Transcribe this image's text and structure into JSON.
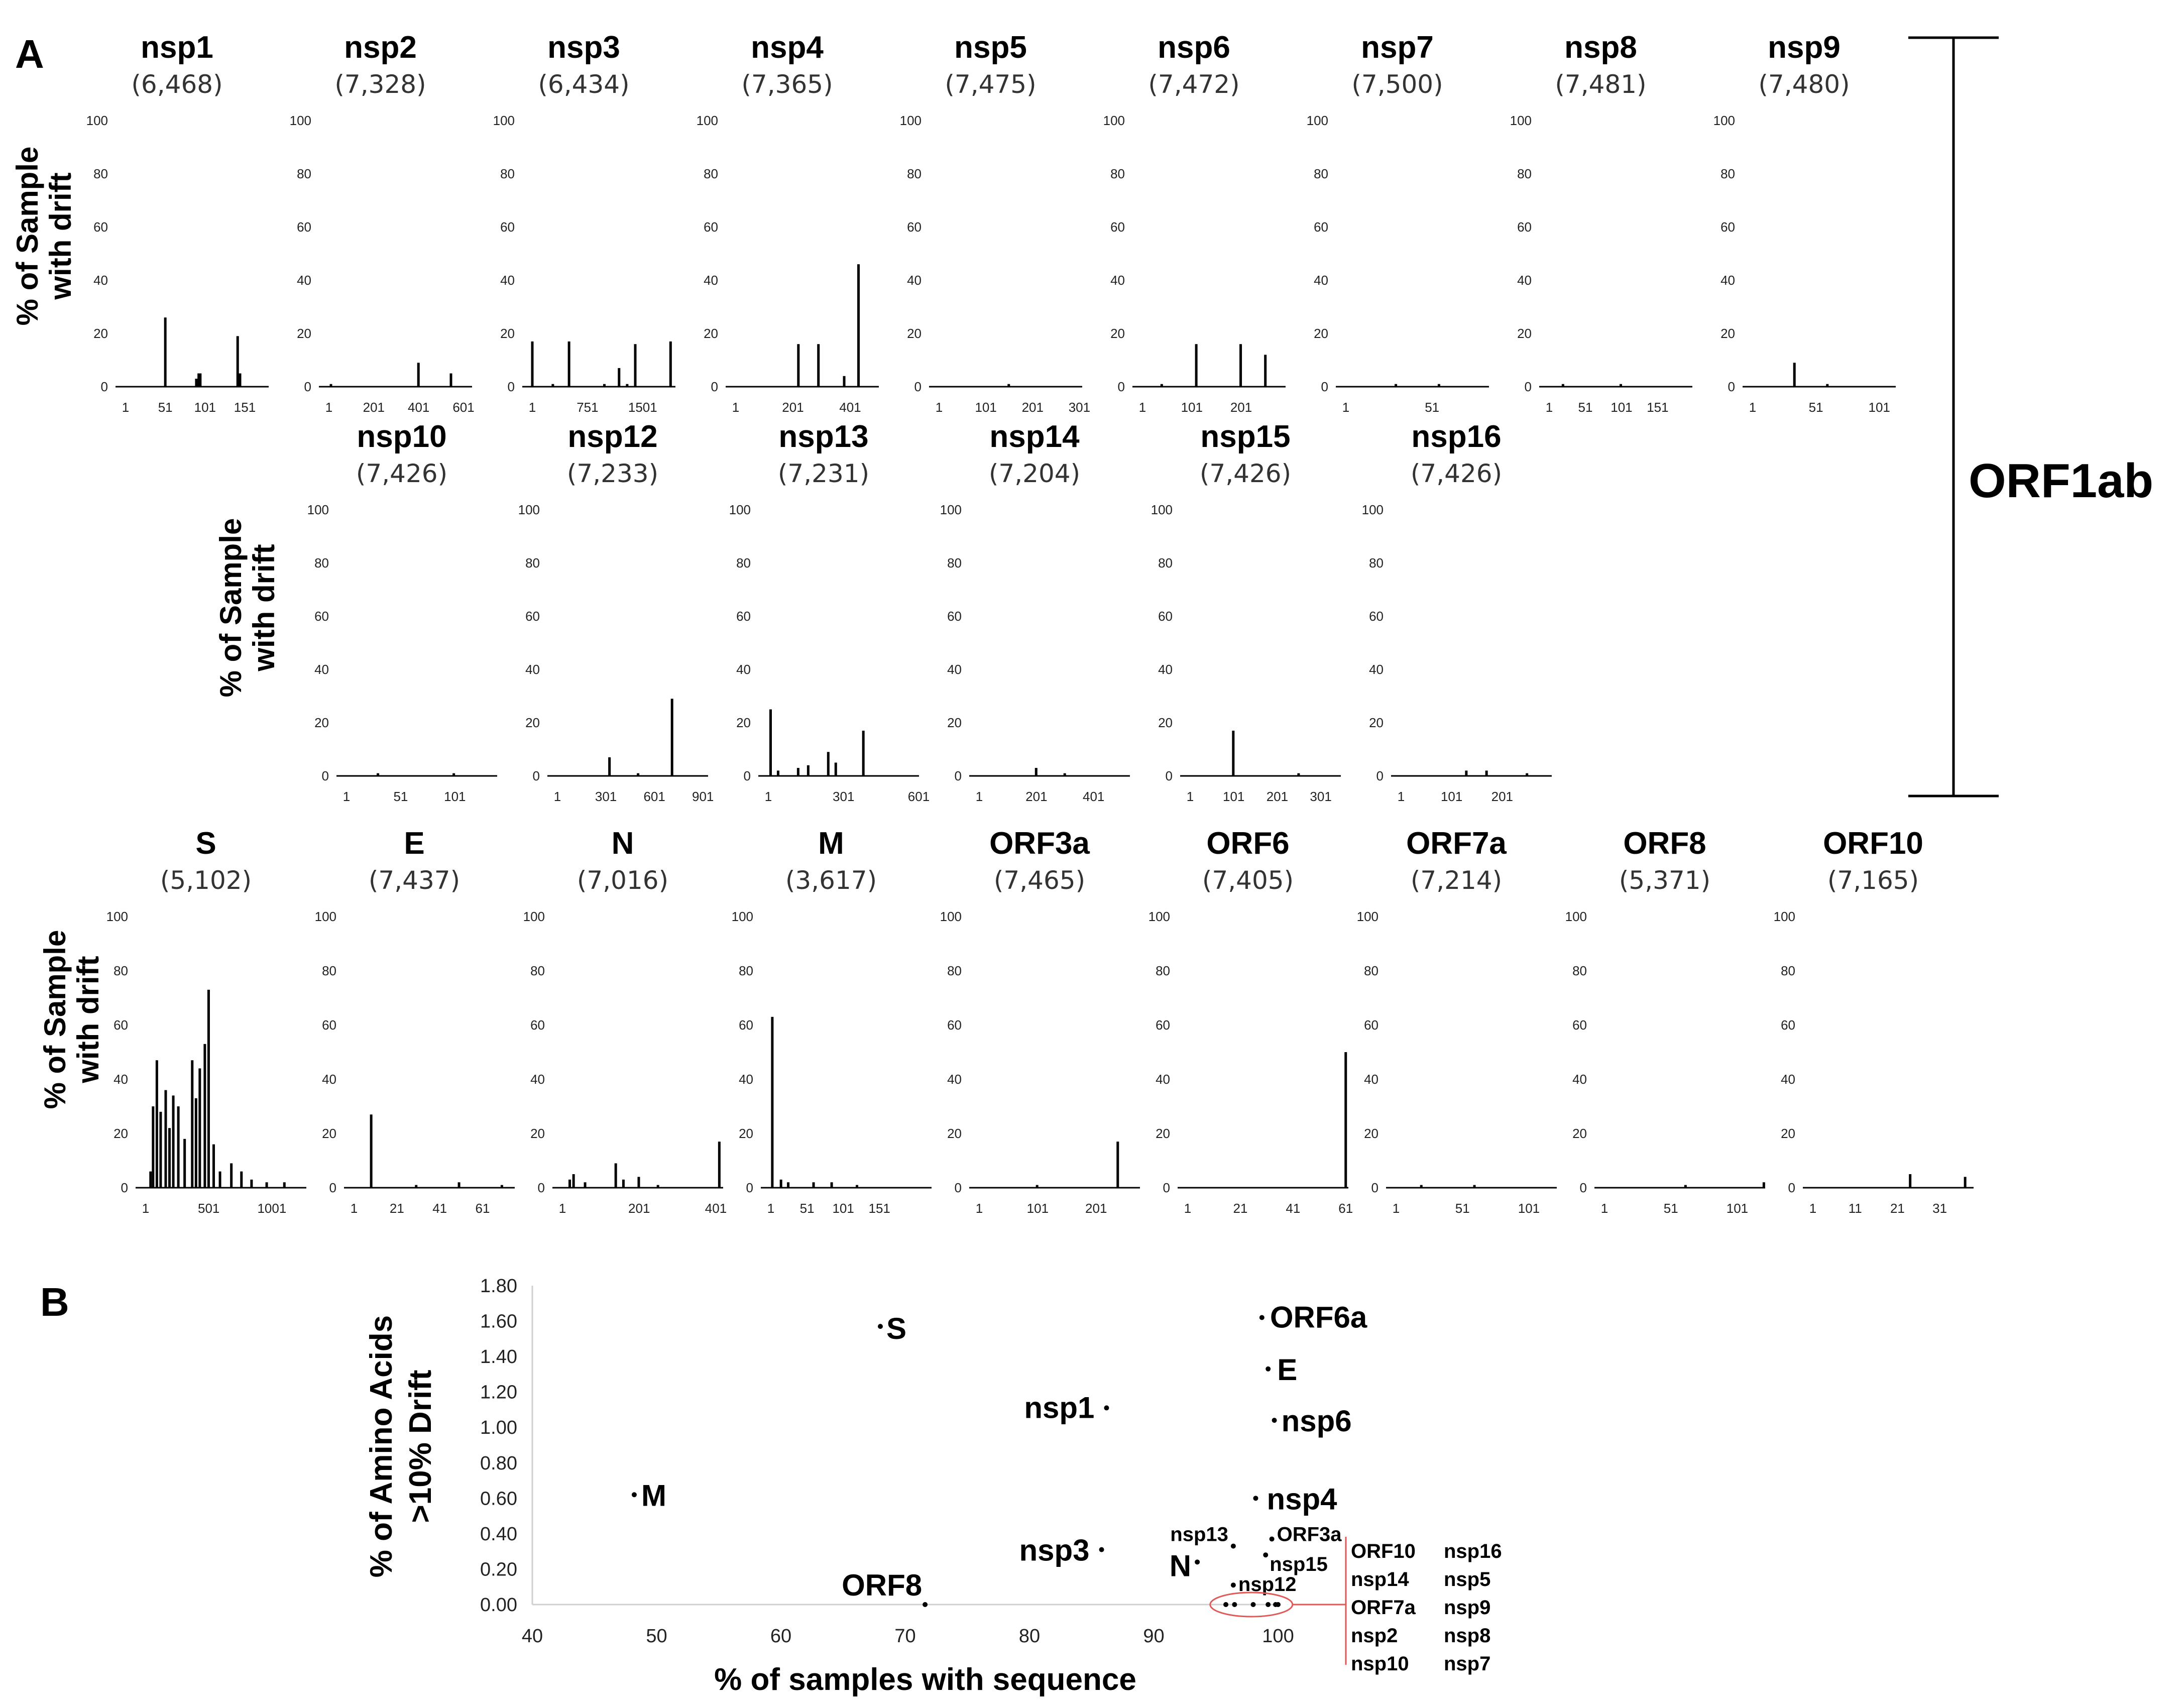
{
  "panel_a_label": "A",
  "panel_b_label": "B",
  "y_axis_label_line1": "% of Sample",
  "y_axis_label_line2": "with drift",
  "bracket_label": "ORF1ab",
  "chart_data": [
    {
      "type": "bar",
      "panel": "A",
      "xlabel": "",
      "ylabel": "% of Sample with drift",
      "ylim": [
        0,
        100
      ],
      "yticks": [
        0,
        20,
        40,
        60,
        80,
        100
      ],
      "genes": [
        {
          "name": "nsp1",
          "count": "(6,468)",
          "length": 180,
          "xticks": [
            "1",
            "51",
            "101",
            "151"
          ],
          "peaks": [
            [
              51,
              26
            ],
            [
              90,
              3
            ],
            [
              93,
              5
            ],
            [
              95,
              5
            ],
            [
              142,
              19
            ],
            [
              145,
              5
            ]
          ]
        },
        {
          "name": "nsp2",
          "count": "(7,328)",
          "length": 638,
          "xticks": [
            "1",
            "201",
            "401",
            "601"
          ],
          "peaks": [
            [
              10,
              1
            ],
            [
              400,
              9
            ],
            [
              545,
              5
            ]
          ]
        },
        {
          "name": "nsp3",
          "count": "(6,434)",
          "length": 1945,
          "xticks": [
            "1",
            "751",
            "1501"
          ],
          "peaks": [
            [
              1,
              17
            ],
            [
              280,
              1
            ],
            [
              500,
              17
            ],
            [
              980,
              1
            ],
            [
              1180,
              7
            ],
            [
              1290,
              1
            ],
            [
              1400,
              16
            ],
            [
              1880,
              17
            ]
          ]
        },
        {
          "name": "nsp4",
          "count": "(7,365)",
          "length": 500,
          "xticks": [
            "1",
            "201",
            "401"
          ],
          "peaks": [
            [
              220,
              16
            ],
            [
              290,
              16
            ],
            [
              380,
              4
            ],
            [
              430,
              46
            ]
          ]
        },
        {
          "name": "nsp5",
          "count": "(7,475)",
          "length": 306,
          "xticks": [
            "1",
            "101",
            "201",
            "301"
          ],
          "peaks": [
            [
              150,
              1
            ]
          ]
        },
        {
          "name": "nsp6",
          "count": "(7,472)",
          "length": 290,
          "xticks": [
            "1",
            "101",
            "201"
          ],
          "peaks": [
            [
              40,
              1
            ],
            [
              110,
              16
            ],
            [
              200,
              16
            ],
            [
              250,
              12
            ]
          ]
        },
        {
          "name": "nsp7",
          "count": "(7,500)",
          "length": 83,
          "xticks": [
            "1",
            "51"
          ],
          "peaks": [
            [
              30,
              1
            ],
            [
              55,
              1
            ]
          ]
        },
        {
          "name": "nsp8",
          "count": "(7,481)",
          "length": 198,
          "xticks": [
            "1",
            "51",
            "101",
            "151"
          ],
          "peaks": [
            [
              20,
              1
            ],
            [
              100,
              1
            ]
          ]
        },
        {
          "name": "nsp9",
          "count": "(7,480)",
          "length": 113,
          "xticks": [
            "1",
            "51",
            "101"
          ],
          "peaks": [
            [
              34,
              9
            ],
            [
              60,
              1
            ]
          ]
        },
        {
          "name": "nsp10",
          "count": "(7,426)",
          "length": 139,
          "xticks": [
            "1",
            "51",
            "101"
          ],
          "peaks": [
            [
              30,
              1
            ],
            [
              100,
              1
            ]
          ]
        },
        {
          "name": "nsp12",
          "count": "(7,233)",
          "length": 932,
          "xticks": [
            "1",
            "301",
            "601",
            "901"
          ],
          "peaks": [
            [
              323,
              7
            ],
            [
              500,
              1
            ],
            [
              710,
              29
            ]
          ]
        },
        {
          "name": "nsp13",
          "count": "(7,231)",
          "length": 601,
          "xticks": [
            "1",
            "301",
            "601"
          ],
          "peaks": [
            [
              10,
              25
            ],
            [
              40,
              2
            ],
            [
              120,
              3
            ],
            [
              160,
              4
            ],
            [
              240,
              9
            ],
            [
              270,
              5
            ],
            [
              380,
              17
            ]
          ]
        },
        {
          "name": "nsp14",
          "count": "(7,204)",
          "length": 527,
          "xticks": [
            "1",
            "201",
            "401"
          ],
          "peaks": [
            [
              200,
              3
            ],
            [
              300,
              1
            ]
          ]
        },
        {
          "name": "nsp15",
          "count": "(7,426)",
          "length": 346,
          "xticks": [
            "1",
            "101",
            "201",
            "301"
          ],
          "peaks": [
            [
              100,
              17
            ],
            [
              250,
              1
            ]
          ]
        },
        {
          "name": "nsp16",
          "count": "(7,426)",
          "length": 298,
          "xticks": [
            "1",
            "101",
            "201"
          ],
          "peaks": [
            [
              130,
              2
            ],
            [
              170,
              2
            ],
            [
              250,
              1
            ]
          ]
        },
        {
          "name": "S",
          "count": "(5,102)",
          "length": 1273,
          "xticks": [
            "1",
            "501",
            "1001"
          ],
          "peaks": [
            [
              40,
              6
            ],
            [
              60,
              30
            ],
            [
              90,
              47
            ],
            [
              120,
              28
            ],
            [
              160,
              36
            ],
            [
              190,
              22
            ],
            [
              220,
              34
            ],
            [
              260,
              30
            ],
            [
              310,
              18
            ],
            [
              370,
              47
            ],
            [
              400,
              33
            ],
            [
              430,
              44
            ],
            [
              470,
              53
            ],
            [
              500,
              73
            ],
            [
              540,
              16
            ],
            [
              590,
              6
            ],
            [
              680,
              9
            ],
            [
              760,
              6
            ],
            [
              840,
              3
            ],
            [
              960,
              2
            ],
            [
              1100,
              2
            ]
          ]
        },
        {
          "name": "E",
          "count": "(7,437)",
          "length": 75,
          "xticks": [
            "1",
            "21",
            "41",
            "61"
          ],
          "peaks": [
            [
              9,
              27
            ],
            [
              30,
              1
            ],
            [
              50,
              2
            ],
            [
              70,
              1
            ]
          ]
        },
        {
          "name": "N",
          "count": "(7,016)",
          "length": 419,
          "xticks": [
            "1",
            "201",
            "401"
          ],
          "peaks": [
            [
              20,
              3
            ],
            [
              30,
              5
            ],
            [
              60,
              2
            ],
            [
              140,
              9
            ],
            [
              160,
              3
            ],
            [
              200,
              4
            ],
            [
              250,
              1
            ],
            [
              410,
              17
            ]
          ]
        },
        {
          "name": "M",
          "count": "(3,617)",
          "length": 222,
          "xticks": [
            "1",
            "51",
            "101",
            "151"
          ],
          "peaks": [
            [
              3,
              63
            ],
            [
              15,
              3
            ],
            [
              25,
              2
            ],
            [
              60,
              2
            ],
            [
              85,
              2
            ],
            [
              120,
              1
            ]
          ]
        },
        {
          "name": "ORF3a",
          "count": "(7,465)",
          "length": 275,
          "xticks": [
            "1",
            "101",
            "201"
          ],
          "peaks": [
            [
              100,
              1
            ],
            [
              238,
              17
            ]
          ]
        },
        {
          "name": "ORF6",
          "count": "(7,405)",
          "length": 61,
          "xticks": [
            "1",
            "21",
            "41",
            "61"
          ],
          "peaks": [
            [
              61,
              50
            ]
          ]
        },
        {
          "name": "ORF7a",
          "count": "(7,214)",
          "length": 121,
          "xticks": [
            "1",
            "51",
            "101"
          ],
          "peaks": [
            [
              20,
              1
            ],
            [
              60,
              1
            ]
          ]
        },
        {
          "name": "ORF8",
          "count": "(5,371)",
          "length": 121,
          "xticks": [
            "1",
            "51",
            "101"
          ],
          "peaks": [
            [
              62,
              1
            ],
            [
              121,
              2
            ]
          ]
        },
        {
          "name": "ORF10",
          "count": "(7,165)",
          "length": 38,
          "xticks": [
            "1",
            "11",
            "21",
            "31"
          ],
          "peaks": [
            [
              24,
              5
            ],
            [
              37,
              4
            ]
          ]
        }
      ]
    },
    {
      "type": "scatter",
      "panel": "B",
      "xlabel": "% of samples with sequence",
      "ylabel_line1": "% of Amino Acids",
      "ylabel_line2": ">10% Drift",
      "xlim": [
        40,
        100
      ],
      "ylim": [
        0,
        1.8
      ],
      "xticks": [
        "40",
        "50",
        "60",
        "70",
        "80",
        "90",
        "100"
      ],
      "yticks": [
        "0.00",
        "0.20",
        "0.40",
        "0.60",
        "0.80",
        "1.00",
        "1.20",
        "1.40",
        "1.60",
        "1.80"
      ],
      "points": [
        {
          "label": "S",
          "x": 68.0,
          "y": 1.57
        },
        {
          "label": "ORF6a",
          "x": 98.7,
          "y": 1.62
        },
        {
          "label": "E",
          "x": 99.2,
          "y": 1.33
        },
        {
          "label": "nsp1",
          "x": 86.2,
          "y": 1.11
        },
        {
          "label": "nsp6",
          "x": 99.7,
          "y": 1.04
        },
        {
          "label": "M",
          "x": 48.2,
          "y": 0.62
        },
        {
          "label": "nsp4",
          "x": 98.2,
          "y": 0.6
        },
        {
          "label": "ORF3a",
          "x": 99.5,
          "y": 0.37
        },
        {
          "label": "nsp13",
          "x": 96.4,
          "y": 0.33
        },
        {
          "label": "nsp3",
          "x": 85.8,
          "y": 0.31
        },
        {
          "label": "nsp15",
          "x": 99.0,
          "y": 0.28
        },
        {
          "label": "N",
          "x": 93.5,
          "y": 0.24
        },
        {
          "label": "nsp12",
          "x": 96.4,
          "y": 0.11
        },
        {
          "label": "ORF8",
          "x": 71.6,
          "y": 0.0
        }
      ],
      "cluster_points_x": [
        95.8,
        96.5,
        98.0,
        99.2,
        99.8,
        100.0
      ],
      "cluster_labels": [
        [
          "ORF10",
          "nsp16"
        ],
        [
          "nsp14",
          "nsp5"
        ],
        [
          "ORF7a",
          "nsp9"
        ],
        [
          "nsp2",
          "nsp8"
        ],
        [
          "nsp10",
          "nsp7"
        ]
      ],
      "highlight_color": "#e05a5a"
    }
  ]
}
